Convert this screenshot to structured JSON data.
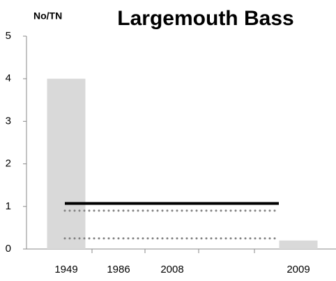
{
  "chart_data": {
    "type": "bar",
    "title": "Largemouth Bass",
    "y_label": "No/TN",
    "categories": [
      "1949",
      "1986",
      "2008",
      "2009"
    ],
    "values": [
      4,
      0,
      0,
      0.2
    ],
    "color": "#d9d9d9",
    "ylim": [
      0,
      5
    ],
    "yticks": [
      0,
      1,
      2,
      3,
      4,
      5
    ],
    "reference_lines": [
      {
        "value": 1.07,
        "style": "solid",
        "color": "#000000"
      },
      {
        "value": 0.9,
        "style": "dotted",
        "color": "#808080"
      },
      {
        "value": 0.25,
        "style": "dotted",
        "color": "#808080"
      }
    ]
  }
}
